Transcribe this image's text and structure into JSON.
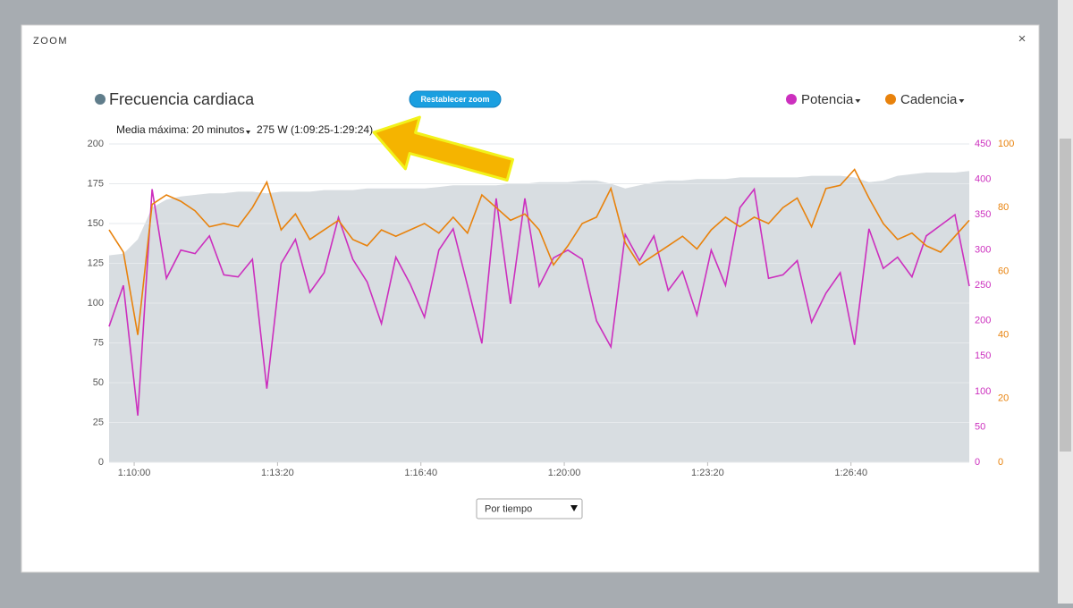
{
  "dialog": {
    "title": "ZOOM",
    "close": "×"
  },
  "controls": {
    "reset_zoom": "Restablecer zoom",
    "max_average_label": "Media máxima: 20 minutos",
    "max_average_value": "275 W (1:09:25-1:29:24)",
    "x_mode": "Por tiempo"
  },
  "chart_data": {
    "type": "line",
    "x": [
      4165,
      4185,
      4205,
      4225,
      4245,
      4265,
      4285,
      4305,
      4325,
      4345,
      4365,
      4385,
      4405,
      4425,
      4445,
      4465,
      4485,
      4505,
      4525,
      4545,
      4565,
      4585,
      4605,
      4625,
      4645,
      4665,
      4685,
      4705,
      4725,
      4745,
      4765,
      4785,
      4805,
      4825,
      4845,
      4865,
      4885,
      4905,
      4925,
      4945,
      4965,
      4985,
      5005,
      5025,
      5045,
      5065,
      5085,
      5105,
      5125,
      5145,
      5165,
      5185,
      5205,
      5225,
      5245,
      5265,
      5285,
      5305,
      5325,
      5345,
      5365
    ],
    "xlim": [
      4165,
      5365
    ],
    "xticks": [
      {
        "value": 4200,
        "label": "1:10:00"
      },
      {
        "value": 4400,
        "label": "1:13:20"
      },
      {
        "value": 4600,
        "label": "1:16:40"
      },
      {
        "value": 4800,
        "label": "1:20:00"
      },
      {
        "value": 5000,
        "label": "1:23:20"
      },
      {
        "value": 5200,
        "label": "1:26:40"
      }
    ],
    "ylim": [
      0,
      200
    ],
    "yticks": [
      0,
      25,
      50,
      75,
      100,
      125,
      150,
      175,
      200
    ],
    "y2lim": [
      0,
      450
    ],
    "y2ticks": [
      0,
      50,
      100,
      150,
      200,
      250,
      300,
      350,
      400,
      450
    ],
    "y3lim": [
      0,
      100
    ],
    "y3ticks": [
      0,
      20,
      40,
      60,
      80,
      100
    ],
    "grid": true,
    "series": [
      {
        "name": "Frecuencia cardiaca",
        "color": "#607d8b",
        "area_color": "#d8dde1",
        "kind": "area",
        "values": [
          130,
          131,
          140,
          160,
          165,
          167,
          168,
          169,
          169,
          170,
          170,
          169,
          170,
          170,
          170,
          171,
          171,
          171,
          172,
          172,
          172,
          172,
          172,
          173,
          174,
          174,
          174,
          174,
          175,
          175,
          176,
          176,
          176,
          177,
          177,
          175,
          172,
          174,
          176,
          177,
          177,
          178,
          178,
          178,
          179,
          179,
          179,
          179,
          179,
          180,
          180,
          180,
          179,
          176,
          177,
          180,
          181,
          182,
          182,
          182,
          183
        ]
      },
      {
        "name": "Potencia",
        "color": "#cc2fbe",
        "axis": "y2",
        "kind": "line",
        "values": [
          192,
          250,
          66,
          386,
          260,
          300,
          295,
          320,
          265,
          262,
          287,
          104,
          281,
          315,
          240,
          268,
          346,
          287,
          255,
          196,
          290,
          252,
          205,
          300,
          330,
          250,
          168,
          373,
          224,
          373,
          249,
          289,
          300,
          287,
          200,
          163,
          322,
          285,
          320,
          243,
          270,
          208,
          300,
          250,
          360,
          386,
          260,
          265,
          285,
          198,
          239,
          268,
          166,
          330,
          274,
          290,
          262,
          320,
          335,
          350,
          249
        ]
      },
      {
        "name": "Cadencia",
        "color": "#e8820c",
        "axis": "y3",
        "kind": "line",
        "values": [
          73,
          66,
          40,
          81,
          84,
          82,
          79,
          74,
          75,
          74,
          80,
          88,
          73,
          78,
          70,
          73,
          76,
          70,
          68,
          73,
          71,
          73,
          75,
          72,
          77,
          72,
          84,
          80,
          76,
          78,
          73,
          62,
          68,
          75,
          77,
          86,
          69,
          62,
          65,
          68,
          71,
          67,
          73,
          77,
          74,
          77,
          75,
          80,
          83,
          74,
          86,
          87,
          92,
          83,
          75,
          70,
          72,
          68,
          66,
          71,
          76
        ]
      }
    ]
  }
}
